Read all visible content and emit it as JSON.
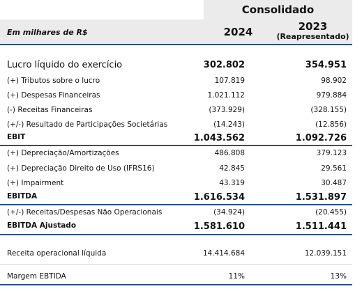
{
  "header": {
    "consolidado": "Consolidado",
    "unit_label": "Em milhares de R$",
    "year_current": "2024",
    "year_prior": "2023",
    "year_prior_note": "(Reapresentado)"
  },
  "rows": [
    {
      "label": "Lucro líquido do exercício",
      "v2024": "302.802",
      "v2023": "354.951"
    },
    {
      "label": "(+) Tributos sobre o lucro",
      "v2024": "107.819",
      "v2023": "98.902"
    },
    {
      "label": "(+) Despesas Financeiras",
      "v2024": "1.021.112",
      "v2023": "979.884"
    },
    {
      "label": "(-)  Receitas Financeiras",
      "v2024": "(373.929)",
      "v2023": "(328.155)"
    },
    {
      "label": "(+/-) Resultado de Participações Societárias",
      "v2024": "(14.243)",
      "v2023": "(12.856)"
    },
    {
      "label": "EBIT",
      "v2024": "1.043.562",
      "v2023": "1.092.726"
    },
    {
      "label": "(+) Depreciação/Amortizações",
      "v2024": "486.808",
      "v2023": "379.123"
    },
    {
      "label": "(+) Depreciação Direito de Uso (IFRS16)",
      "v2024": "42.845",
      "v2023": "29.561"
    },
    {
      "label": "(+) Impairment",
      "v2024": "43.319",
      "v2023": "30.487"
    },
    {
      "label": "EBITDA",
      "v2024": "1.616.534",
      "v2023": "1.531.897"
    },
    {
      "label": "(+/-) Receitas/Despesas Não Operacionais",
      "v2024": "(34.924)",
      "v2023": "(20.455)"
    },
    {
      "label": "EBITDA Ajustado",
      "v2024": "1.581.610",
      "v2023": "1.511.441"
    },
    {
      "label": "Receita operacional líquida",
      "v2024": "14.414.684",
      "v2023": "12.039.151"
    },
    {
      "label": "Margem EBTIDA",
      "v2024": "11%",
      "v2023": "13%"
    }
  ]
}
